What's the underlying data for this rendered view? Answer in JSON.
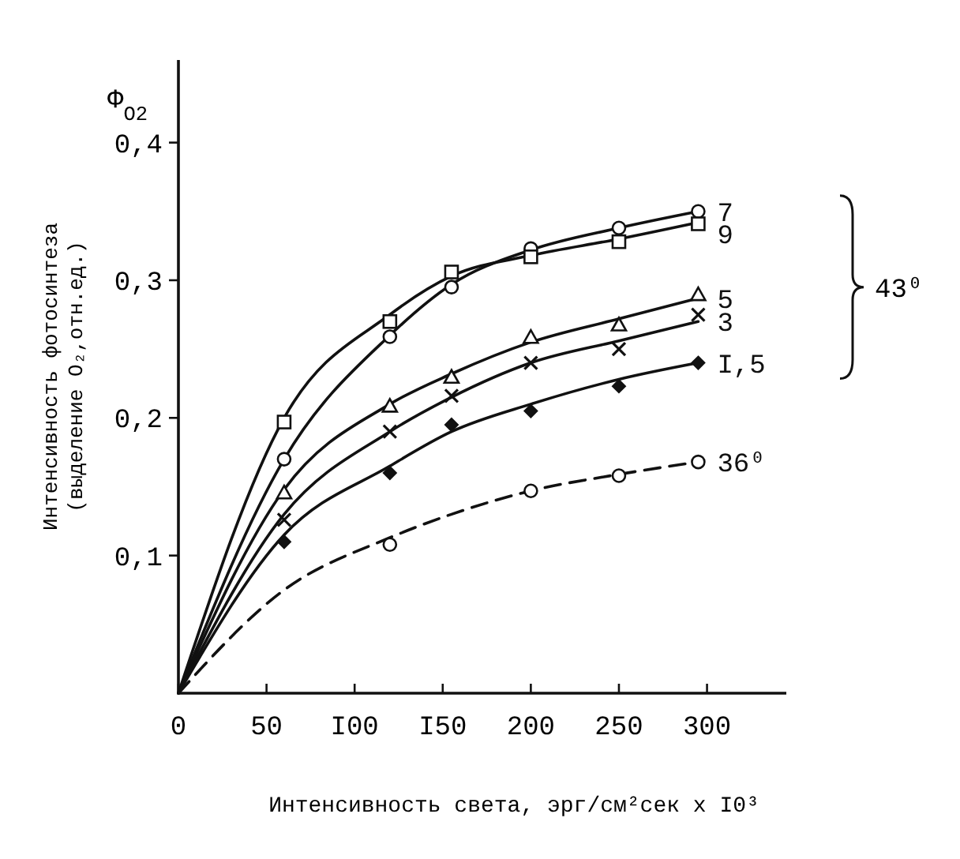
{
  "chart_data": {
    "type": "line",
    "xlabel": "Интенсивность света, эрг/см²сек x I0³",
    "ylabel": "Интенсивность фотосинтеза (выделение O₂,отн.ед.)",
    "annotations": [
      "Φ$_{O2}$",
      "43⁰"
    ],
    "xlim": [
      0,
      345
    ],
    "ylim": [
      0,
      0.46
    ],
    "xticks": [
      0,
      50,
      {
        "value": 100,
        "label": "I00"
      },
      {
        "value": 150,
        "label": "I50"
      },
      200,
      250,
      300
    ],
    "yticks": [
      {
        "value": 0.1,
        "label": "0,1"
      },
      {
        "value": 0.2,
        "label": "0,2"
      },
      {
        "value": 0.3,
        "label": "0,3"
      },
      {
        "value": 0.4,
        "label": "0,4"
      }
    ],
    "grid": false,
    "line_style": "solid",
    "series": [
      {
        "name": "7",
        "color": "#111111",
        "x": [
          0,
          60,
          120,
          155,
          200,
          250,
          295
        ],
        "values": [
          0,
          0.17,
          0.26,
          0.297,
          0.322,
          0.338,
          0.35
        ]
      },
      {
        "name": "9",
        "color": "#111111",
        "x": [
          0,
          60,
          120,
          155,
          200,
          250,
          295
        ],
        "values": [
          0,
          0.2,
          0.275,
          0.303,
          0.318,
          0.33,
          0.342
        ]
      },
      {
        "name": "5",
        "color": "#111111",
        "x": [
          0,
          60,
          120,
          155,
          200,
          250,
          295
        ],
        "values": [
          0,
          0.148,
          0.21,
          0.232,
          0.255,
          0.272,
          0.287
        ]
      },
      {
        "name": "3",
        "color": "#111111",
        "x": [
          0,
          60,
          120,
          155,
          200,
          250,
          295
        ],
        "values": [
          0,
          0.13,
          0.19,
          0.215,
          0.24,
          0.256,
          0.27
        ]
      },
      {
        "name": "I,5",
        "color": "#111111",
        "x": [
          0,
          60,
          120,
          155,
          200,
          250,
          295
        ],
        "values": [
          0,
          0.115,
          0.165,
          0.19,
          0.21,
          0.228,
          0.24
        ]
      },
      {
        "name": "36⁰",
        "color": "#111111",
        "line_style": "dashed",
        "x": [
          0,
          60,
          120,
          155,
          200,
          250,
          295
        ],
        "values": [
          0,
          0.075,
          0.113,
          0.13,
          0.147,
          0.159,
          0.168
        ]
      },
      {
        "type": "scatter",
        "color": "#111111",
        "marker": "circle",
        "x": [
          60,
          120,
          155,
          200,
          250,
          295
        ],
        "values": [
          0.17,
          0.259,
          0.295,
          0.323,
          0.338,
          0.35
        ]
      },
      {
        "type": "scatter",
        "color": "#111111",
        "marker": "square",
        "x": [
          60,
          120,
          155,
          200,
          250,
          295
        ],
        "values": [
          0.197,
          0.27,
          0.306,
          0.317,
          0.328,
          0.341
        ]
      },
      {
        "type": "scatter",
        "color": "#111111",
        "marker": "triangle",
        "x": [
          60,
          120,
          155,
          200,
          250,
          295
        ],
        "values": [
          0.145,
          0.208,
          0.229,
          0.258,
          0.267,
          0.289
        ]
      },
      {
        "type": "scatter",
        "color": "#111111",
        "marker": "cross",
        "x": [
          60,
          120,
          155,
          200,
          250,
          295
        ],
        "values": [
          0.126,
          0.19,
          0.216,
          0.24,
          0.25,
          0.275
        ]
      },
      {
        "type": "scatter",
        "color": "#111111",
        "marker": "diamond",
        "x": [
          60,
          120,
          155,
          200,
          250,
          295
        ],
        "values": [
          0.11,
          0.16,
          0.195,
          0.205,
          0.223,
          0.24
        ]
      },
      {
        "type": "scatter",
        "color": "#111111",
        "marker": "circle",
        "x": [
          120,
          200,
          250,
          295
        ],
        "values": [
          0.108,
          0.147,
          0.158,
          0.168
        ]
      }
    ]
  }
}
